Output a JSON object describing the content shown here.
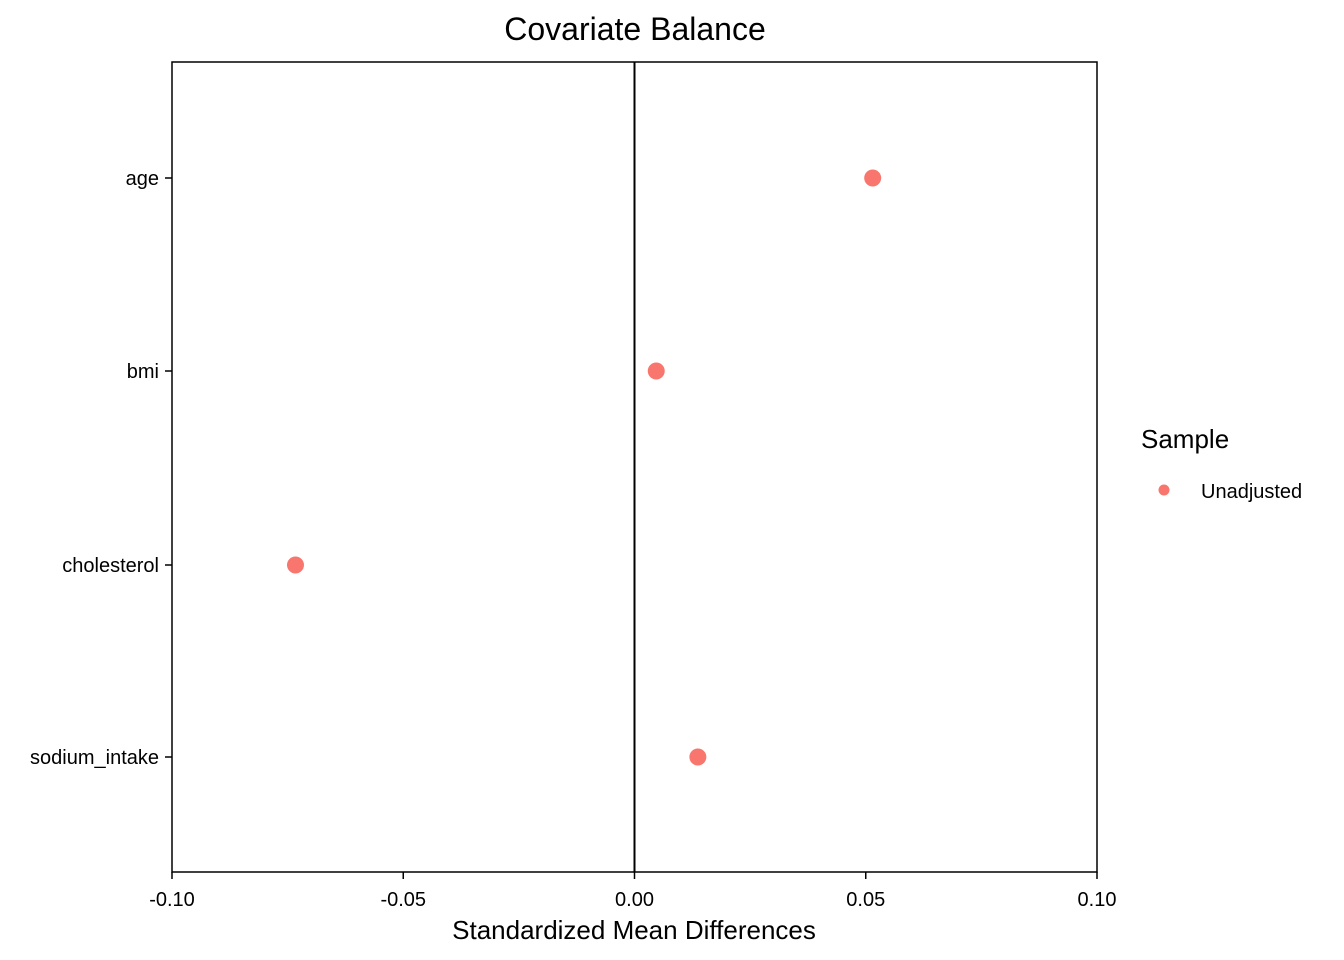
{
  "chart_data": {
    "type": "scatter",
    "title": "Covariate Balance",
    "xlabel": "Standardized Mean Differences",
    "ylabel": "",
    "xlim": [
      -0.1,
      0.1
    ],
    "x_ticks": [
      -0.1,
      -0.05,
      0.0,
      0.05,
      0.1
    ],
    "x_tick_labels": [
      "-0.10",
      "-0.05",
      "0.00",
      "0.05",
      "0.10"
    ],
    "categories": [
      "age",
      "bmi",
      "cholesterol",
      "sodium_intake"
    ],
    "reference_line_x": 0,
    "grid": false,
    "legend": {
      "title": "Sample",
      "position": "right"
    },
    "series": [
      {
        "name": "Unadjusted",
        "color": "#F8766D",
        "points": [
          {
            "y": "age",
            "x": 0.0515
          },
          {
            "y": "bmi",
            "x": 0.0047
          },
          {
            "y": "cholesterol",
            "x": -0.0733
          },
          {
            "y": "sodium_intake",
            "x": 0.0137
          }
        ]
      }
    ]
  }
}
